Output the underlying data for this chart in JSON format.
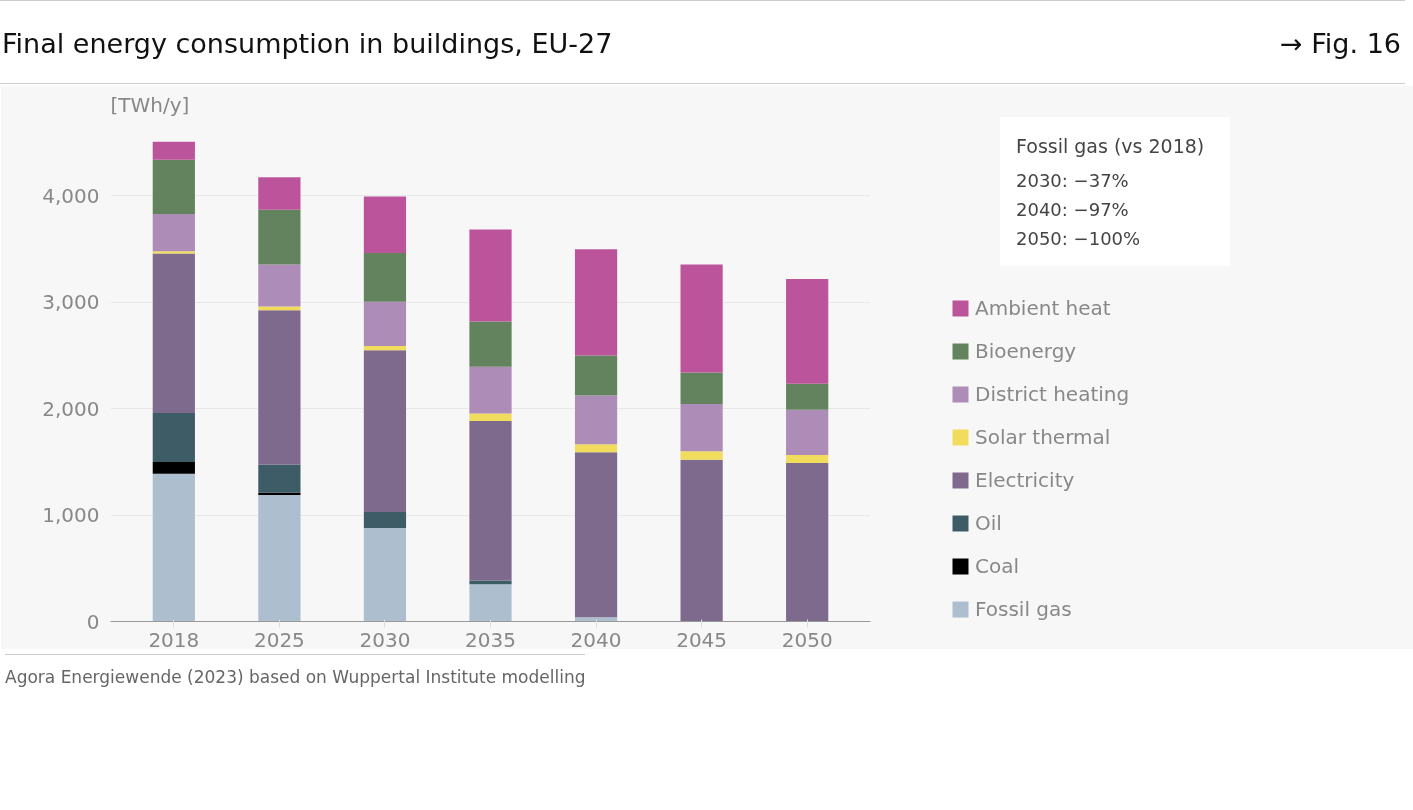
{
  "chart_data": {
    "type": "bar",
    "title": "Final energy consumption in buildings, EU-27",
    "ylabel": "[TWh/y]",
    "stacked": true,
    "categories": [
      "2018",
      "2025",
      "2030",
      "2035",
      "2040",
      "2045",
      "2050"
    ],
    "series": [
      {
        "name": "Fossil gas",
        "color": "#adbfcf",
        "values": [
          1390,
          1190,
          880,
          350,
          40,
          0,
          0
        ]
      },
      {
        "name": "Coal",
        "color": "#000000",
        "values": [
          110,
          20,
          0,
          0,
          0,
          0,
          0
        ]
      },
      {
        "name": "Oil",
        "color": "#3e5c66",
        "values": [
          460,
          265,
          150,
          35,
          0,
          0,
          0
        ]
      },
      {
        "name": "Electricity",
        "color": "#7e6a8d",
        "values": [
          1500,
          1450,
          1520,
          1500,
          1550,
          1520,
          1490
        ]
      },
      {
        "name": "Solar thermal",
        "color": "#f2dc5d",
        "values": [
          20,
          35,
          40,
          70,
          75,
          80,
          75
        ]
      },
      {
        "name": "District heating",
        "color": "#ad8cb8",
        "values": [
          350,
          395,
          415,
          440,
          460,
          445,
          425
        ]
      },
      {
        "name": "Bioenergy",
        "color": "#62835d",
        "values": [
          510,
          515,
          460,
          425,
          375,
          295,
          245
        ]
      },
      {
        "name": "Ambient heat",
        "color": "#bb549b",
        "values": [
          170,
          305,
          530,
          865,
          1000,
          1015,
          985
        ]
      }
    ],
    "ylim": [
      0,
      4700
    ],
    "yticks": [
      0,
      {
        "value": 1000,
        "label": "1,000"
      },
      {
        "value": 2000,
        "label": "2,000"
      },
      {
        "value": 3000,
        "label": "3,000"
      },
      {
        "value": 4000,
        "label": "4,000"
      }
    ],
    "grid": "y",
    "legend": "right",
    "annotations": [
      "→ Fig. 16",
      "Fossil gas (vs 2018)",
      "2030: −37%",
      "2040: −97%",
      "2050: −100%",
      "Agora Energiewende (2023) based on Wuppertal Institute modelling"
    ]
  }
}
